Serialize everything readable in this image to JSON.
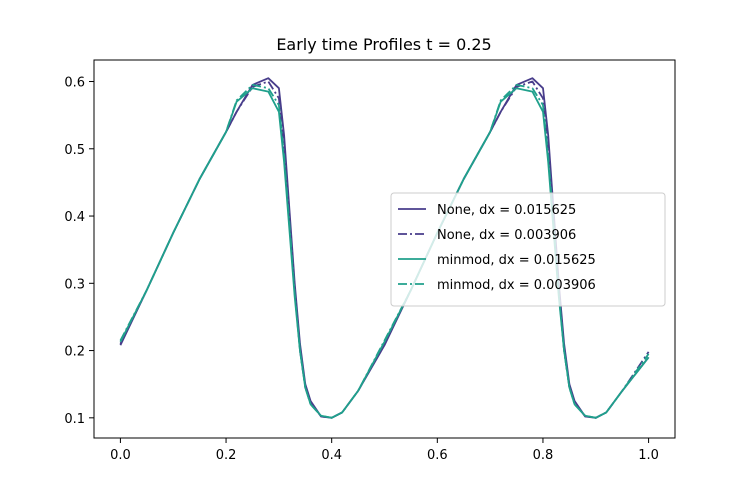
{
  "chart_data": {
    "type": "line",
    "title": "Early time Profiles t = 0.25",
    "xlabel": "",
    "ylabel": "",
    "xlim": [
      -0.05,
      1.05
    ],
    "ylim": [
      0.07,
      0.632
    ],
    "xticks": [
      "0.0",
      "0.2",
      "0.4",
      "0.6",
      "0.8",
      "1.0"
    ],
    "yticks": [
      "0.1",
      "0.2",
      "0.3",
      "0.4",
      "0.5",
      "0.6"
    ],
    "grid": false,
    "legend_position": "center-right",
    "series": [
      {
        "name": "None, dx = 0.015625",
        "color": "#483d8b",
        "linestyle": "solid",
        "x": [
          0.0,
          0.05,
          0.1,
          0.15,
          0.2,
          0.22,
          0.25,
          0.28,
          0.3,
          0.31,
          0.32,
          0.33,
          0.34,
          0.35,
          0.36,
          0.38,
          0.4,
          0.42,
          0.45,
          0.5,
          0.55,
          0.6,
          0.65,
          0.7,
          0.72,
          0.75,
          0.78,
          0.8,
          0.81,
          0.82,
          0.83,
          0.84,
          0.85,
          0.86,
          0.88,
          0.9,
          0.92,
          0.95,
          1.0
        ],
        "y": [
          0.208,
          0.29,
          0.375,
          0.455,
          0.525,
          0.555,
          0.595,
          0.605,
          0.59,
          0.52,
          0.41,
          0.3,
          0.21,
          0.15,
          0.125,
          0.102,
          0.1,
          0.108,
          0.14,
          0.208,
          0.29,
          0.375,
          0.455,
          0.525,
          0.555,
          0.595,
          0.605,
          0.59,
          0.52,
          0.41,
          0.3,
          0.21,
          0.15,
          0.125,
          0.102,
          0.1,
          0.108,
          0.14,
          0.19
        ]
      },
      {
        "name": "None, dx = 0.003906",
        "color": "#483d8b",
        "linestyle": "dashdot",
        "x": [
          0.0,
          0.05,
          0.1,
          0.15,
          0.2,
          0.22,
          0.25,
          0.28,
          0.3,
          0.31,
          0.32,
          0.33,
          0.34,
          0.35,
          0.36,
          0.38,
          0.4,
          0.42,
          0.45,
          0.5,
          0.55,
          0.6,
          0.65,
          0.7,
          0.72,
          0.75,
          0.78,
          0.8,
          0.81,
          0.82,
          0.83,
          0.84,
          0.85,
          0.86,
          0.88,
          0.9,
          0.92,
          0.95,
          1.0
        ],
        "y": [
          0.21,
          0.29,
          0.375,
          0.455,
          0.525,
          0.555,
          0.592,
          0.6,
          0.575,
          0.5,
          0.4,
          0.29,
          0.2,
          0.145,
          0.122,
          0.102,
          0.1,
          0.108,
          0.14,
          0.21,
          0.29,
          0.375,
          0.455,
          0.525,
          0.555,
          0.592,
          0.6,
          0.575,
          0.5,
          0.4,
          0.29,
          0.2,
          0.145,
          0.122,
          0.102,
          0.1,
          0.108,
          0.14,
          0.198
        ]
      },
      {
        "name": "minmod, dx = 0.015625",
        "color": "#20a08c",
        "linestyle": "solid",
        "x": [
          0.0,
          0.05,
          0.1,
          0.15,
          0.2,
          0.22,
          0.25,
          0.28,
          0.3,
          0.31,
          0.32,
          0.33,
          0.34,
          0.35,
          0.36,
          0.38,
          0.4,
          0.42,
          0.45,
          0.5,
          0.55,
          0.6,
          0.65,
          0.7,
          0.72,
          0.75,
          0.78,
          0.8,
          0.81,
          0.82,
          0.83,
          0.84,
          0.85,
          0.86,
          0.88,
          0.9,
          0.92,
          0.95,
          1.0
        ],
        "y": [
          0.213,
          0.29,
          0.375,
          0.455,
          0.525,
          0.57,
          0.59,
          0.585,
          0.555,
          0.48,
          0.38,
          0.28,
          0.2,
          0.145,
          0.12,
          0.103,
          0.1,
          0.108,
          0.14,
          0.213,
          0.29,
          0.375,
          0.455,
          0.525,
          0.57,
          0.59,
          0.585,
          0.555,
          0.48,
          0.38,
          0.28,
          0.2,
          0.145,
          0.12,
          0.103,
          0.1,
          0.108,
          0.14,
          0.19
        ]
      },
      {
        "name": "minmod, dx = 0.003906",
        "color": "#20a08c",
        "linestyle": "dashdot",
        "x": [
          0.0,
          0.05,
          0.1,
          0.15,
          0.2,
          0.22,
          0.25,
          0.28,
          0.3,
          0.31,
          0.32,
          0.33,
          0.34,
          0.35,
          0.36,
          0.38,
          0.4,
          0.42,
          0.45,
          0.5,
          0.55,
          0.6,
          0.65,
          0.7,
          0.72,
          0.75,
          0.78,
          0.8,
          0.81,
          0.82,
          0.83,
          0.84,
          0.85,
          0.86,
          0.88,
          0.9,
          0.92,
          0.95,
          1.0
        ],
        "y": [
          0.215,
          0.29,
          0.375,
          0.455,
          0.525,
          0.572,
          0.595,
          0.59,
          0.565,
          0.49,
          0.39,
          0.285,
          0.2,
          0.145,
          0.12,
          0.103,
          0.1,
          0.108,
          0.14,
          0.215,
          0.29,
          0.375,
          0.455,
          0.525,
          0.572,
          0.595,
          0.59,
          0.565,
          0.49,
          0.39,
          0.285,
          0.2,
          0.145,
          0.12,
          0.103,
          0.1,
          0.108,
          0.14,
          0.195
        ]
      }
    ]
  }
}
